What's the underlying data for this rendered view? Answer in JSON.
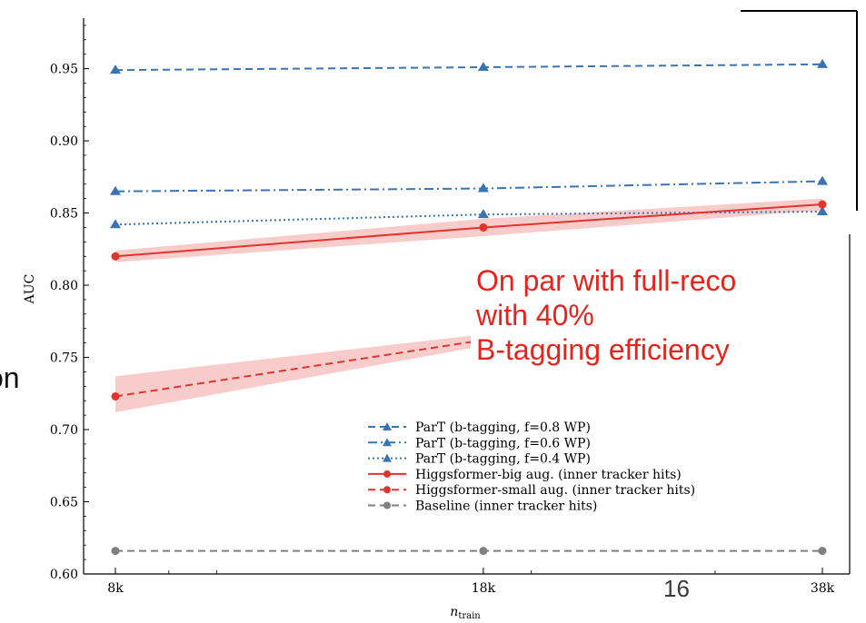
{
  "chart_data": {
    "type": "line",
    "xlabel": "n_train",
    "ylabel": "AUC",
    "x": [
      "8k",
      "18k",
      "38k"
    ],
    "x_values": [
      8000,
      18000,
      38000
    ],
    "x_scale": "log",
    "ylim": [
      0.6,
      0.99
    ],
    "y_ticks": [
      "0.60",
      "0.65",
      "0.70",
      "0.75",
      "0.80",
      "0.85",
      "0.90",
      "0.95"
    ],
    "grid": false,
    "legend_position": "lower-right",
    "series": [
      {
        "name": "ParT (b-tagging, f=0.8 WP)",
        "values": [
          0.949,
          0.951,
          0.953
        ],
        "color": "#3a74b4",
        "dash": "dashed",
        "marker": "triangle"
      },
      {
        "name": "ParT (b-tagging, f=0.6 WP)",
        "values": [
          0.865,
          0.867,
          0.872
        ],
        "color": "#3a74b4",
        "dash": "dashdot",
        "marker": "triangle"
      },
      {
        "name": "ParT (b-tagging, f=0.4 WP)",
        "values": [
          0.842,
          0.849,
          0.851
        ],
        "color": "#3a74b4",
        "dash": "dotted",
        "marker": "triangle"
      },
      {
        "name": "Higgsformer-big aug. (inner tracker hits)",
        "values": [
          0.82,
          0.84,
          0.856
        ],
        "band_low": [
          0.816,
          0.834,
          0.852
        ],
        "band_high": [
          0.824,
          0.846,
          0.86
        ],
        "color": "#e0342c",
        "dash": "solid",
        "marker": "circle"
      },
      {
        "name": "Higgsformer-small aug. (inner tracker hits)",
        "values": [
          0.723,
          0.762,
          null
        ],
        "band_low": [
          0.712,
          0.758,
          null
        ],
        "band_high": [
          0.737,
          0.766,
          null
        ],
        "color": "#e0342c",
        "dash": "dashed",
        "marker": "circle"
      },
      {
        "name": "Baseline (inner tracker hits)",
        "values": [
          0.616,
          0.616,
          0.616
        ],
        "color": "#808080",
        "dash": "dashed",
        "marker": "circle"
      }
    ]
  },
  "overlay": {
    "lines": [
      "On par with full-reco",
      "with 40%",
      "B-tagging efficiency"
    ],
    "clipped_word": "on",
    "page_number": "16"
  }
}
